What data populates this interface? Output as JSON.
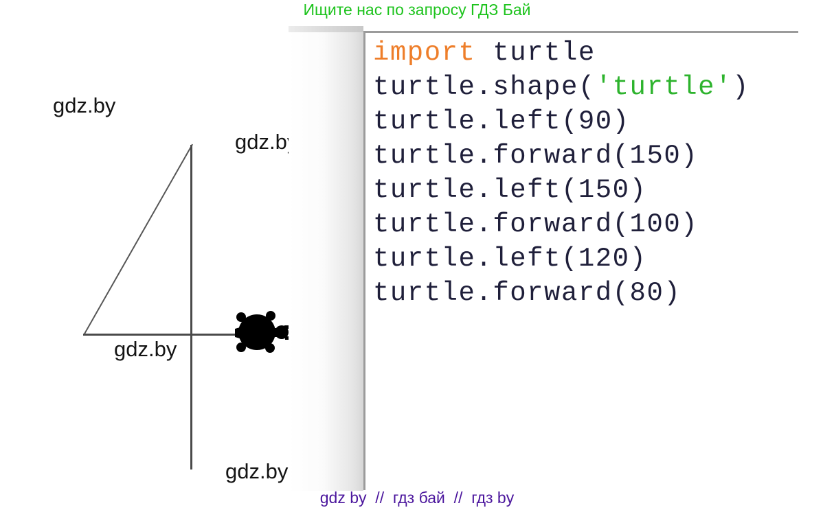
{
  "banner": {
    "text": "Ищите нас по запросу ГДЗ Бай",
    "color": "#1dc31d"
  },
  "watermark": {
    "label": "gdz.by"
  },
  "code": {
    "language": "python",
    "colors": {
      "keyword": "#ee7e2a",
      "string": "#2db32d",
      "plain": "#1f1f3a"
    },
    "lines": [
      [
        [
          "kw",
          "import"
        ],
        [
          "plain",
          " turtle"
        ]
      ],
      [
        [
          "plain",
          "turtle.shape("
        ],
        [
          "str",
          "'turtle'"
        ],
        [
          "plain",
          ")"
        ]
      ],
      [
        [
          "plain",
          "turtle.left(90)"
        ]
      ],
      [
        [
          "plain",
          "turtle.forward(150)"
        ]
      ],
      [
        [
          "plain",
          "turtle.left(150)"
        ]
      ],
      [
        [
          "plain",
          "turtle.forward(100)"
        ]
      ],
      [
        [
          "plain",
          "turtle.left(120)"
        ]
      ],
      [
        [
          "plain",
          "turtle.forward(80)"
        ]
      ]
    ]
  },
  "footer": {
    "text": "gdz by  //  гдз бай  //  гдз by",
    "color": "#4b169d"
  }
}
